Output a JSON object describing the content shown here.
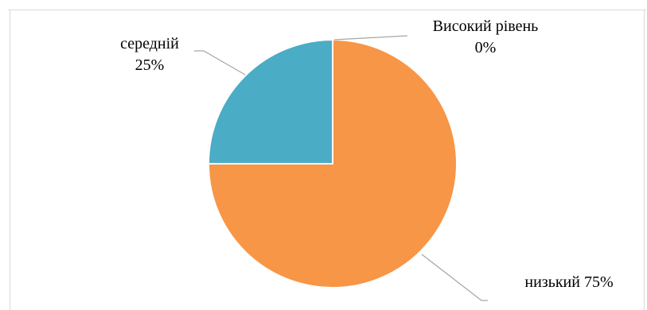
{
  "chart_data": {
    "type": "pie",
    "categories": [
      "низький",
      "середній",
      "Високий рівень"
    ],
    "values": [
      75,
      25,
      0
    ],
    "unit": "%",
    "title": "",
    "labels": [
      {
        "lines": [
          "низький 75%"
        ]
      },
      {
        "lines": [
          "середній",
          "25%"
        ]
      },
      {
        "lines": [
          "Високий рівень",
          "0%"
        ]
      }
    ],
    "legend": "none",
    "start_angle": "12 o'clock",
    "direction": "clockwise",
    "colors": [
      "#F79646",
      "#4BACC6",
      "#9BBB59"
    ],
    "border_color": "#FFFFFF",
    "frame_color": "#D9D9D9",
    "leader_line_color": "#A6A6A6"
  }
}
